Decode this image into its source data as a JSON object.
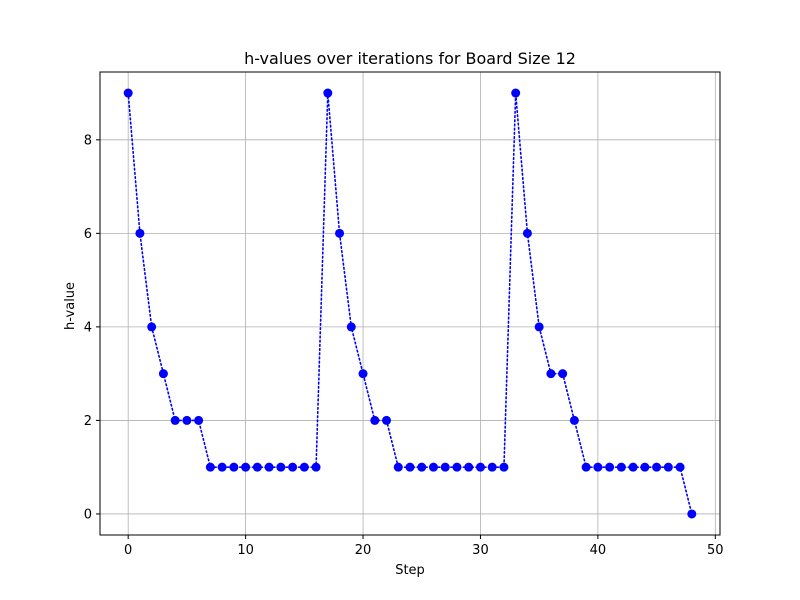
{
  "chart_data": {
    "type": "line",
    "title": "h-values over iterations for Board Size 12",
    "xlabel": "Step",
    "ylabel": "h-value",
    "xlim": [
      -2.4,
      50.4
    ],
    "ylim": [
      -0.45,
      9.45
    ],
    "xticks": [
      0,
      10,
      20,
      30,
      40,
      50
    ],
    "yticks": [
      0,
      2,
      4,
      6,
      8
    ],
    "grid": true,
    "series": [
      {
        "line_style": "dotted",
        "marker": "circle",
        "color": "#0000ff",
        "x": [
          0,
          1,
          2,
          3,
          4,
          5,
          6,
          7,
          8,
          9,
          10,
          11,
          12,
          13,
          14,
          15,
          16,
          17,
          18,
          19,
          20,
          21,
          22,
          23,
          24,
          25,
          26,
          27,
          28,
          29,
          30,
          31,
          32,
          33,
          34,
          35,
          36,
          37,
          38,
          39,
          40,
          41,
          42,
          43,
          44,
          45,
          46,
          47,
          48
        ],
        "values": [
          9,
          6,
          4,
          3,
          2,
          2,
          2,
          1,
          1,
          1,
          1,
          1,
          1,
          1,
          1,
          1,
          1,
          9,
          6,
          4,
          3,
          2,
          2,
          1,
          1,
          1,
          1,
          1,
          1,
          1,
          1,
          1,
          1,
          9,
          6,
          4,
          3,
          3,
          2,
          1,
          1,
          1,
          1,
          1,
          1,
          1,
          1,
          1,
          0
        ]
      }
    ]
  }
}
